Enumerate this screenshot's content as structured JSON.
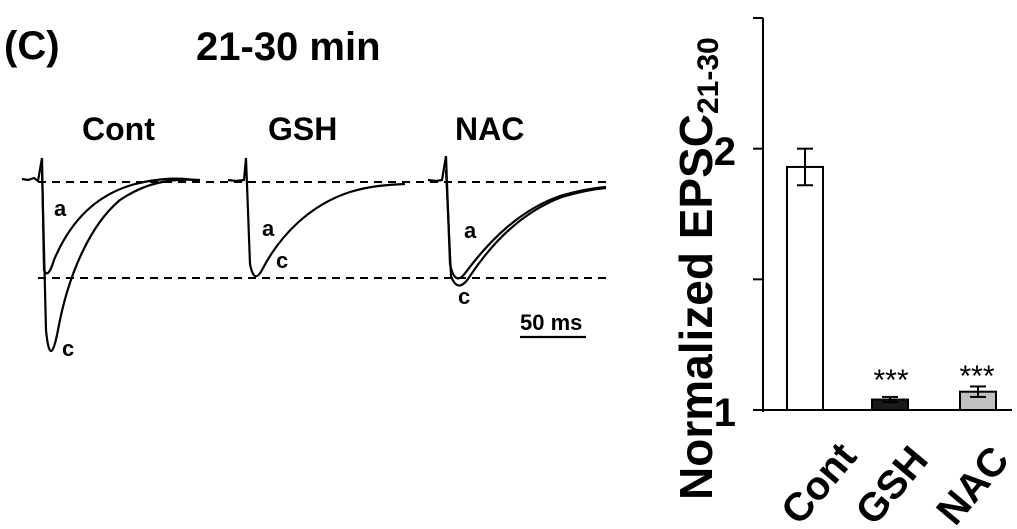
{
  "panel_label": "(C)",
  "time_window": "21-30 min",
  "traces": {
    "groups": [
      {
        "name": "Cont",
        "labels": [
          "a",
          "c"
        ]
      },
      {
        "name": "GSH",
        "labels": [
          "a",
          "c"
        ]
      },
      {
        "name": "NAC",
        "labels": [
          "a",
          "c"
        ]
      }
    ],
    "scale_bar": "50 ms"
  },
  "chart_data": {
    "type": "bar",
    "ylabel_main": "Normalized EPSC",
    "ylabel_sub": "21-30",
    "categories": [
      "Cont",
      "GSH",
      "NAC"
    ],
    "values": [
      1.93,
      1.04,
      1.07
    ],
    "errors": [
      0.07,
      0.01,
      0.02
    ],
    "colors": [
      "#ffffff",
      "#1a1a1a",
      "#c0c0c0"
    ],
    "significance": [
      "",
      "***",
      "***"
    ],
    "yticks": [
      "1",
      "2"
    ],
    "ylim": [
      1,
      2.5
    ]
  }
}
